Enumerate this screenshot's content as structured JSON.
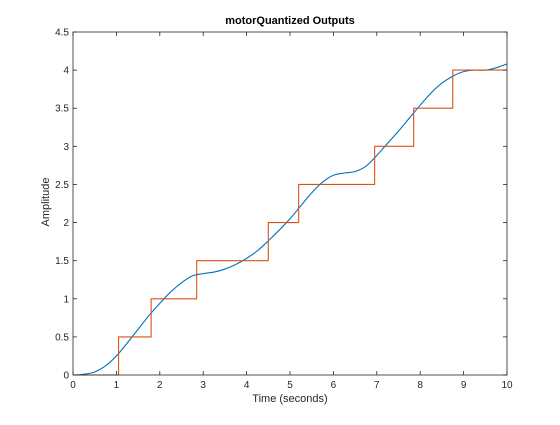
{
  "chart_data": {
    "type": "line",
    "title": "motorQuantized Outputs",
    "xlabel": "Time (seconds)",
    "ylabel": "Amplitude",
    "xlim": [
      0,
      10
    ],
    "ylim": [
      0,
      4.5
    ],
    "xticks": [
      0,
      1,
      2,
      3,
      4,
      5,
      6,
      7,
      8,
      9,
      10
    ],
    "xtick_labels": [
      "0",
      "1",
      "2",
      "3",
      "4",
      "5",
      "6",
      "7",
      "8",
      "9",
      "10"
    ],
    "yticks": [
      0,
      0.5,
      1,
      1.5,
      2,
      2.5,
      3,
      3.5,
      4,
      4.5
    ],
    "ytick_labels": [
      "0",
      "0.5",
      "1",
      "1.5",
      "2",
      "2.5",
      "3",
      "3.5",
      "4",
      "4.5"
    ],
    "grid": false,
    "box": true,
    "series": [
      {
        "style": "smooth",
        "color": "#0072BD",
        "x": [
          0,
          0.25,
          0.5,
          0.75,
          1.0,
          1.25,
          1.5,
          1.75,
          2.0,
          2.25,
          2.5,
          2.75,
          3.0,
          3.25,
          3.5,
          3.75,
          4.0,
          4.25,
          4.5,
          4.75,
          5.0,
          5.25,
          5.5,
          5.75,
          6.0,
          6.25,
          6.5,
          6.75,
          7.0,
          7.25,
          7.5,
          7.75,
          8.0,
          8.25,
          8.5,
          8.75,
          9.0,
          9.25,
          9.5,
          9.75,
          10.0
        ],
        "y": [
          0,
          0.01,
          0.04,
          0.12,
          0.25,
          0.42,
          0.6,
          0.78,
          0.94,
          1.09,
          1.21,
          1.3,
          1.33,
          1.35,
          1.39,
          1.45,
          1.53,
          1.63,
          1.76,
          1.9,
          2.05,
          2.22,
          2.39,
          2.53,
          2.62,
          2.65,
          2.67,
          2.74,
          2.88,
          3.04,
          3.2,
          3.37,
          3.54,
          3.7,
          3.83,
          3.92,
          3.98,
          4.0,
          4.0,
          4.03,
          4.08
        ]
      },
      {
        "style": "step",
        "color": "#D95319",
        "x": [
          0,
          1.05,
          1.05,
          1.8,
          1.8,
          2.85,
          2.85,
          4.5,
          4.5,
          5.2,
          5.2,
          6.95,
          6.95,
          7.85,
          7.85,
          8.75,
          8.75,
          10.0
        ],
        "y": [
          0,
          0,
          0.5,
          0.5,
          1.0,
          1.0,
          1.5,
          1.5,
          2.0,
          2.0,
          2.5,
          2.5,
          3.0,
          3.0,
          3.5,
          3.5,
          4.0,
          4.0
        ]
      }
    ]
  }
}
